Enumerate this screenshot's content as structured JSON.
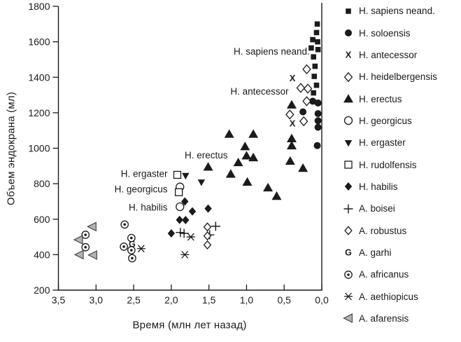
{
  "figure": {
    "background": "#ffffff",
    "ink_color": "#1b1b1b",
    "afarensis_fill": "#b3b3b3",
    "afarensis_stroke": "#3d3d3d"
  },
  "chart_data": {
    "type": "scatter",
    "title": "",
    "xlabel": "Время (млн лет назад)",
    "ylabel": "Объем эндокрана (мл)",
    "x_axis_reversed": true,
    "xlim": [
      3.5,
      0.0
    ],
    "ylim": [
      200,
      1800
    ],
    "grid": false,
    "legend_position": "right",
    "x_tick_values": [
      3.5,
      3.0,
      2.5,
      2.0,
      1.5,
      1.0,
      0.5,
      0.0
    ],
    "x_tick_labels": [
      "3,5",
      "3,0",
      "2,5",
      "2,0",
      "1,5",
      "1,0",
      "0,5",
      "0,0"
    ],
    "y_tick_values": [
      200,
      400,
      600,
      800,
      1000,
      1200,
      1400,
      1600,
      1800
    ],
    "y_tick_labels": [
      "200",
      "400",
      "600",
      "800",
      "1000",
      "1200",
      "1400",
      "1600",
      "1800"
    ],
    "series": [
      {
        "name": "H. sapiens neand.",
        "marker": "square-filled",
        "points": [
          [
            0.06,
            1700
          ],
          [
            0.07,
            1652
          ],
          [
            0.12,
            1612
          ],
          [
            0.055,
            1600
          ],
          [
            0.14,
            1565
          ],
          [
            0.05,
            1556
          ],
          [
            0.11,
            1515
          ],
          [
            0.09,
            1462
          ],
          [
            0.1,
            1405
          ],
          [
            0.07,
            1355
          ],
          [
            0.11,
            1312
          ]
        ]
      },
      {
        "name": "H. soloensis",
        "marker": "circle-filled",
        "points": [
          [
            0.12,
            1265
          ],
          [
            0.05,
            1255
          ],
          [
            0.25,
            1205
          ],
          [
            0.05,
            1195
          ],
          [
            0.05,
            1155
          ],
          [
            0.05,
            1118
          ],
          [
            0.06,
            1015
          ]
        ]
      },
      {
        "name": "H. antecessor",
        "marker": "x-glyph",
        "points": [
          [
            0.39,
            1395
          ],
          [
            0.39,
            1140
          ]
        ]
      },
      {
        "name": "H. heidelbergensis",
        "marker": "diamond-open",
        "points": [
          [
            0.2,
            1445
          ],
          [
            0.28,
            1340
          ],
          [
            0.185,
            1336
          ],
          [
            0.2,
            1265
          ],
          [
            0.425,
            1190
          ],
          [
            0.24,
            1152
          ]
        ]
      },
      {
        "name": "H. erectus",
        "marker": "triangle-up",
        "points": [
          [
            1.51,
            895
          ],
          [
            1.23,
            1080
          ],
          [
            0.91,
            1080
          ],
          [
            1.02,
            1010
          ],
          [
            1.0,
            958
          ],
          [
            0.91,
            948
          ],
          [
            1.11,
            920
          ],
          [
            1.21,
            855
          ],
          [
            0.99,
            810
          ],
          [
            0.715,
            778
          ],
          [
            0.6,
            730
          ],
          [
            0.4,
            1245
          ],
          [
            0.4,
            1055
          ],
          [
            0.4,
            1015
          ],
          [
            0.42,
            928
          ],
          [
            0.25,
            888
          ]
        ]
      },
      {
        "name": "H. georgicus",
        "marker": "circle-open",
        "points": [
          [
            1.885,
            782
          ],
          [
            1.885,
            670
          ]
        ]
      },
      {
        "name": "H. ergaster",
        "marker": "triangle-down",
        "points": [
          [
            1.81,
            845
          ],
          [
            1.6,
            808
          ],
          [
            1.9,
            756
          ]
        ]
      },
      {
        "name": "H. rudolfensis",
        "marker": "square-open",
        "points": [
          [
            1.92,
            850
          ],
          [
            1.9,
            752
          ]
        ]
      },
      {
        "name": "H. habilis",
        "marker": "diamond-filled",
        "points": [
          [
            1.82,
            700
          ],
          [
            1.51,
            660
          ],
          [
            1.72,
            644
          ],
          [
            1.89,
            596
          ],
          [
            1.81,
            595
          ],
          [
            2.0,
            520
          ]
        ]
      },
      {
        "name": "A. boisei",
        "marker": "plus",
        "points": [
          [
            1.88,
            525
          ],
          [
            1.83,
            520
          ],
          [
            1.41,
            560
          ],
          [
            1.49,
            512
          ]
        ]
      },
      {
        "name": "A. robustus",
        "marker": "diamond-open-small",
        "points": [
          [
            1.52,
            556
          ],
          [
            1.52,
            506
          ],
          [
            1.52,
            455
          ]
        ]
      },
      {
        "name": "A. garhi",
        "marker": "g-glyph",
        "points": [
          [
            2.52,
            460
          ]
        ]
      },
      {
        "name": "A. africanus",
        "marker": "circled-dot",
        "points": [
          [
            2.62,
            570
          ],
          [
            2.53,
            494
          ],
          [
            2.63,
            445
          ],
          [
            2.53,
            425
          ],
          [
            2.52,
            380
          ],
          [
            3.14,
            512
          ],
          [
            3.14,
            442
          ]
        ]
      },
      {
        "name": "A. aethiopicus",
        "marker": "asterisk",
        "points": [
          [
            2.4,
            434
          ],
          [
            1.74,
            500
          ],
          [
            1.82,
            400
          ]
        ]
      },
      {
        "name": "A. afarensis",
        "marker": "triangle-left",
        "points": [
          [
            3.05,
            558
          ],
          [
            3.23,
            484
          ],
          [
            3.22,
            400
          ],
          [
            3.04,
            398
          ]
        ]
      }
    ],
    "annotations": [
      {
        "text": "H. sapiens neand.",
        "x": 0.16,
        "y": 1546
      },
      {
        "text": "H. antecessor",
        "x": 0.44,
        "y": 1321
      },
      {
        "text": "H. erectus",
        "x": 1.25,
        "y": 960
      },
      {
        "text": "H. ergaster",
        "x": 2.05,
        "y": 856
      },
      {
        "text": "H. georgicus",
        "x": 2.05,
        "y": 770
      },
      {
        "text": "H. habilis",
        "x": 2.05,
        "y": 667
      }
    ]
  }
}
